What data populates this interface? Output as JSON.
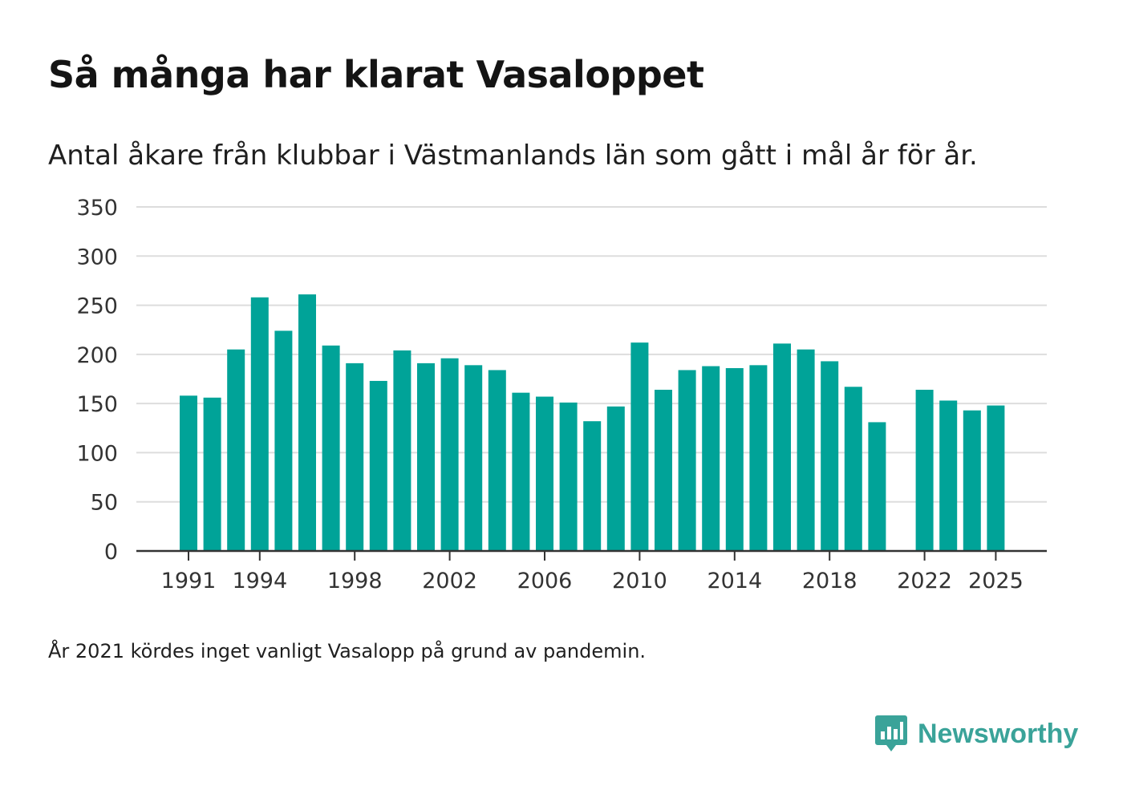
{
  "header": {
    "title": "Så många har klarat Vasaloppet",
    "subtitle": "Antal åkare från klubbar i Västmanlands län som gått i mål år för år."
  },
  "footer": {
    "note": "År 2021 kördes inget vanligt Vasalopp på grund av pandemin.",
    "brand": "Newsworthy"
  },
  "colors": {
    "bar": "#00a398",
    "grid": "#dddddd",
    "axis": "#333333",
    "brand": "#3aa399"
  },
  "icons": {
    "brand_logo": "newsworthy-logo-icon"
  },
  "chart_data": {
    "type": "bar",
    "title": "Så många har klarat Vasaloppet",
    "xlabel": "",
    "ylabel": "",
    "ylim": [
      0,
      350
    ],
    "yticks": [
      0,
      50,
      100,
      150,
      200,
      250,
      300,
      350
    ],
    "xticks": [
      "1991",
      "1994",
      "1998",
      "2002",
      "2006",
      "2010",
      "2014",
      "2018",
      "2022",
      "2025"
    ],
    "grid": true,
    "categories": [
      1991,
      1992,
      1993,
      1994,
      1995,
      1996,
      1997,
      1998,
      1999,
      2000,
      2001,
      2002,
      2003,
      2004,
      2005,
      2006,
      2007,
      2008,
      2009,
      2010,
      2011,
      2012,
      2013,
      2014,
      2015,
      2016,
      2017,
      2018,
      2019,
      2020,
      2021,
      2022,
      2023,
      2024,
      2025
    ],
    "values": [
      158,
      156,
      205,
      258,
      224,
      261,
      209,
      191,
      173,
      204,
      191,
      196,
      189,
      184,
      161,
      157,
      151,
      132,
      147,
      212,
      164,
      184,
      188,
      186,
      189,
      211,
      205,
      193,
      167,
      131,
      null,
      164,
      153,
      143,
      148
    ]
  }
}
